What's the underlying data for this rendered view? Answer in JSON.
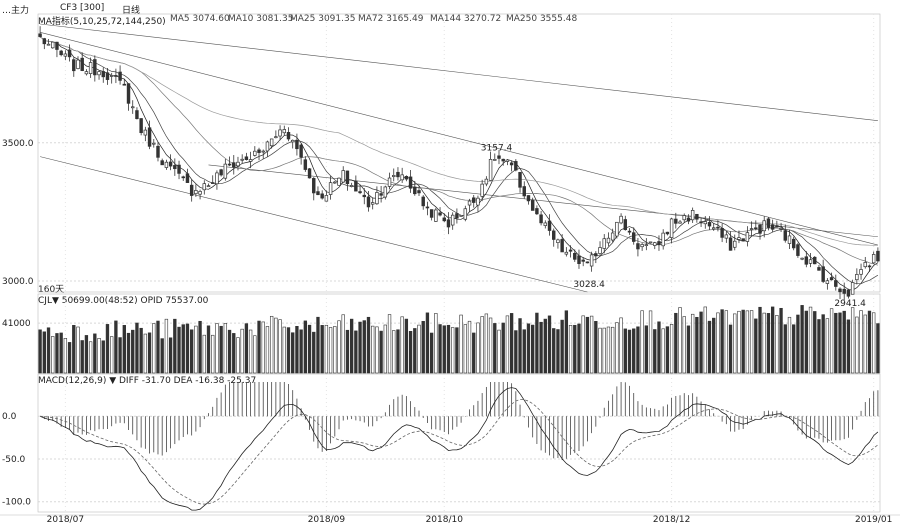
{
  "window": {
    "title": "…主力",
    "chart_tab": "CF3 [300]",
    "view_label": "日线"
  },
  "price_panel": {
    "indicator_label": "MA指标(5,10,25,72,144,250)",
    "ma_readouts": [
      "MA5 3074.60",
      "MA10 3081.35",
      "MA25 3091.35",
      "MA72 3165.49",
      "MA144 3270.72",
      "MA250 3555.48"
    ],
    "period_label": "160天",
    "annotations": {
      "high_label": "3157.4",
      "low_label_1": "3028.4",
      "low_label_2": "2941.4"
    },
    "y_ticks": [
      {
        "value": 3500,
        "label": "3500.0"
      },
      {
        "value": 3000,
        "label": "3000.0"
      }
    ]
  },
  "volume_panel": {
    "header": "CJL▼ 50699.00(48:52)  OPID 75537.00",
    "y_tick": "41000"
  },
  "macd_panel": {
    "header": "MACD(12,26,9) ▼ DIFF -31.70  DEA -16.38  -25.37",
    "y_ticks": [
      {
        "value": 0,
        "label": "0.0"
      },
      {
        "value": -50,
        "label": "-50.0"
      },
      {
        "value": -100,
        "label": "-100.0"
      }
    ]
  },
  "x_axis": {
    "ticks": [
      {
        "idx": 6,
        "label": "2018/07"
      },
      {
        "idx": 68,
        "label": "2018/09"
      },
      {
        "idx": 96,
        "label": "2018/10"
      },
      {
        "idx": 150,
        "label": "2018/12"
      },
      {
        "idx": 198,
        "label": "2019/01"
      }
    ]
  },
  "colors": {
    "up": "#ffffff",
    "down": "#333333",
    "line": "#333333",
    "grid": "#d8d8d8"
  },
  "chart_data": {
    "type": "candlestick",
    "points": 200,
    "anchors": [
      {
        "i": 0,
        "p": 3880
      },
      {
        "i": 8,
        "p": 3780
      },
      {
        "i": 15,
        "p": 3760
      },
      {
        "i": 20,
        "p": 3700
      },
      {
        "i": 24,
        "p": 3550
      },
      {
        "i": 30,
        "p": 3420
      },
      {
        "i": 36,
        "p": 3330
      },
      {
        "i": 40,
        "p": 3350
      },
      {
        "i": 45,
        "p": 3420
      },
      {
        "i": 52,
        "p": 3460
      },
      {
        "i": 58,
        "p": 3560
      },
      {
        "i": 62,
        "p": 3450
      },
      {
        "i": 66,
        "p": 3300
      },
      {
        "i": 72,
        "p": 3380
      },
      {
        "i": 78,
        "p": 3280
      },
      {
        "i": 82,
        "p": 3350
      },
      {
        "i": 86,
        "p": 3390
      },
      {
        "i": 92,
        "p": 3260
      },
      {
        "i": 97,
        "p": 3210
      },
      {
        "i": 103,
        "p": 3290
      },
      {
        "i": 108,
        "p": 3450
      },
      {
        "i": 112,
        "p": 3410
      },
      {
        "i": 118,
        "p": 3230
      },
      {
        "i": 124,
        "p": 3110
      },
      {
        "i": 130,
        "p": 3050
      },
      {
        "i": 134,
        "p": 3160
      },
      {
        "i": 138,
        "p": 3220
      },
      {
        "i": 142,
        "p": 3130
      },
      {
        "i": 146,
        "p": 3120
      },
      {
        "i": 150,
        "p": 3210
      },
      {
        "i": 155,
        "p": 3240
      },
      {
        "i": 160,
        "p": 3190
      },
      {
        "i": 164,
        "p": 3130
      },
      {
        "i": 168,
        "p": 3170
      },
      {
        "i": 172,
        "p": 3200
      },
      {
        "i": 176,
        "p": 3180
      },
      {
        "i": 180,
        "p": 3110
      },
      {
        "i": 184,
        "p": 3050
      },
      {
        "i": 188,
        "p": 2990
      },
      {
        "i": 192,
        "p": 2960
      },
      {
        "i": 195,
        "p": 3050
      },
      {
        "i": 199,
        "p": 3090
      }
    ],
    "channel_lines": [
      {
        "from": [
          0,
          3930
        ],
        "to": [
          199,
          3580
        ]
      },
      {
        "from": [
          0,
          3900
        ],
        "to": [
          199,
          3130
        ]
      },
      {
        "from": [
          0,
          3450
        ],
        "to": [
          130,
          2960
        ]
      },
      {
        "from": [
          40,
          3420
        ],
        "to": [
          199,
          3160
        ]
      }
    ],
    "ma_periods": [
      5,
      10,
      25,
      72
    ],
    "ylim": [
      2960,
      3930
    ],
    "volume_ylim": [
      0,
      60000
    ],
    "macd_ylim": [
      -112,
      40
    ]
  }
}
